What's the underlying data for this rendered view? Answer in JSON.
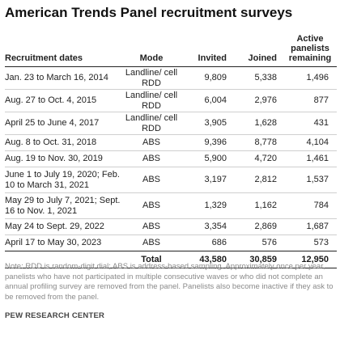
{
  "title": "American Trends Panel recruitment surveys",
  "table": {
    "headers": {
      "dates": "Recruitment dates",
      "mode": "Mode",
      "invited": "Invited",
      "joined": "Joined",
      "active": "Active panelists remaining"
    },
    "rows": [
      {
        "dates": "Jan. 23 to March 16, 2014",
        "mode": "Landline/ cell RDD",
        "invited": "9,809",
        "joined": "5,338",
        "active": "1,496"
      },
      {
        "dates": "Aug. 27 to Oct. 4, 2015",
        "mode": "Landline/ cell RDD",
        "invited": "6,004",
        "joined": "2,976",
        "active": "877"
      },
      {
        "dates": "April 25 to June 4, 2017",
        "mode": "Landline/ cell RDD",
        "invited": "3,905",
        "joined": "1,628",
        "active": "431"
      },
      {
        "dates": "Aug. 8 to Oct. 31, 2018",
        "mode": "ABS",
        "invited": "9,396",
        "joined": "8,778",
        "active": "4,104"
      },
      {
        "dates": "Aug. 19 to Nov. 30, 2019",
        "mode": "ABS",
        "invited": "5,900",
        "joined": "4,720",
        "active": "1,461"
      },
      {
        "dates": "June 1 to July 19, 2020; Feb. 10 to March 31, 2021",
        "mode": "ABS",
        "invited": "3,197",
        "joined": "2,812",
        "active": "1,537"
      },
      {
        "dates": "May 29 to July 7, 2021; Sept. 16 to Nov. 1, 2021",
        "mode": "ABS",
        "invited": "1,329",
        "joined": "1,162",
        "active": "784"
      },
      {
        "dates": "May 24 to Sept. 29, 2022",
        "mode": "ABS",
        "invited": "3,354",
        "joined": "2,869",
        "active": "1,687"
      },
      {
        "dates": "April 17 to May 30, 2023",
        "mode": "ABS",
        "invited": "686",
        "joined": "576",
        "active": "573"
      }
    ],
    "total": {
      "label": "Total",
      "invited": "43,580",
      "joined": "30,859",
      "active": "12,950"
    }
  },
  "note": "Note: RDD is random-digit dial; ABS is address-based sampling. Approximately once per year, panelists who have not participated in multiple consecutive waves or who did not complete an annual profiling survey are removed from the panel. Panelists also become inactive if they ask to be removed from the panel.",
  "source": "PEW RESEARCH CENTER"
}
